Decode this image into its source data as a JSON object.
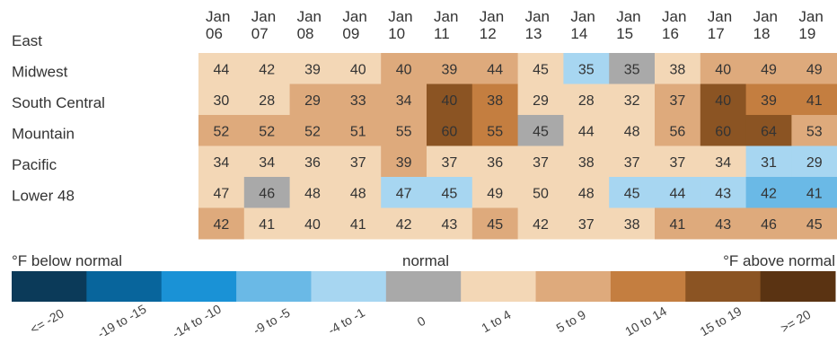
{
  "chart_data": {
    "type": "heatmap",
    "dates": [
      [
        "Jan",
        "06"
      ],
      [
        "Jan",
        "07"
      ],
      [
        "Jan",
        "08"
      ],
      [
        "Jan",
        "09"
      ],
      [
        "Jan",
        "10"
      ],
      [
        "Jan",
        "11"
      ],
      [
        "Jan",
        "12"
      ],
      [
        "Jan",
        "13"
      ],
      [
        "Jan",
        "14"
      ],
      [
        "Jan",
        "15"
      ],
      [
        "Jan",
        "16"
      ],
      [
        "Jan",
        "17"
      ],
      [
        "Jan",
        "18"
      ],
      [
        "Jan",
        "19"
      ]
    ],
    "regions": [
      "East",
      "Midwest",
      "South Central",
      "Mountain",
      "Pacific",
      "Lower 48"
    ],
    "values": [
      [
        44,
        42,
        39,
        40,
        40,
        39,
        44,
        45,
        35,
        35,
        38,
        40,
        49,
        49
      ],
      [
        30,
        28,
        29,
        33,
        34,
        40,
        38,
        29,
        28,
        32,
        37,
        40,
        39,
        41
      ],
      [
        52,
        52,
        52,
        51,
        55,
        60,
        55,
        45,
        44,
        48,
        56,
        60,
        64,
        53
      ],
      [
        34,
        34,
        36,
        37,
        39,
        37,
        36,
        37,
        38,
        37,
        37,
        34,
        31,
        29
      ],
      [
        47,
        46,
        48,
        48,
        47,
        45,
        49,
        50,
        48,
        45,
        44,
        43,
        42,
        41
      ],
      [
        42,
        41,
        40,
        41,
        42,
        43,
        45,
        42,
        37,
        38,
        41,
        43,
        46,
        45
      ]
    ],
    "deviation_category": [
      [
        6,
        6,
        6,
        6,
        7,
        7,
        7,
        6,
        4,
        5,
        6,
        7,
        7,
        7
      ],
      [
        6,
        6,
        7,
        7,
        7,
        9,
        8,
        6,
        6,
        6,
        7,
        9,
        8,
        8
      ],
      [
        7,
        7,
        7,
        7,
        7,
        9,
        8,
        5,
        6,
        6,
        7,
        9,
        9,
        7
      ],
      [
        6,
        6,
        6,
        6,
        7,
        6,
        6,
        6,
        6,
        6,
        6,
        6,
        4,
        4
      ],
      [
        6,
        5,
        6,
        6,
        4,
        4,
        6,
        6,
        6,
        4,
        4,
        4,
        3,
        3
      ],
      [
        7,
        6,
        6,
        6,
        6,
        6,
        7,
        6,
        6,
        6,
        7,
        7,
        7,
        7
      ]
    ],
    "legend": {
      "left_label": "°F below normal",
      "center_label": "normal",
      "right_label": "°F above normal",
      "categories": [
        "<= -20",
        "-19 to -15",
        "-14 to -10",
        "-9 to -5",
        "-4 to -1",
        "0",
        "1 to 4",
        "5 to 9",
        "10 to 14",
        "15 to 19",
        ">= 20"
      ],
      "colors": [
        "#0b3a59",
        "#08659c",
        "#1a92d6",
        "#6ab9e6",
        "#a7d6f1",
        "#a9a9a9",
        "#f3d7b6",
        "#deaa7c",
        "#c47e40",
        "#8b5423",
        "#5a3312"
      ]
    }
  }
}
